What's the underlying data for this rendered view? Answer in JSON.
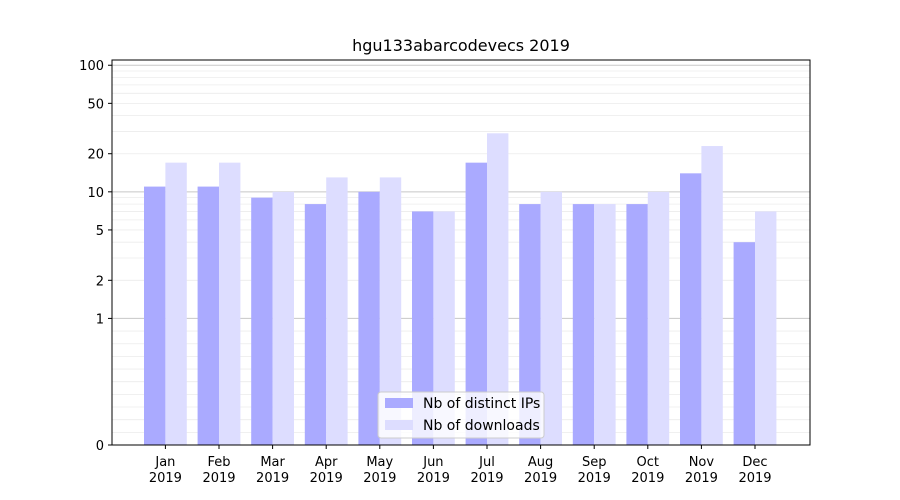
{
  "chart_data": {
    "type": "bar",
    "title": "hgu133abarcodevecs 2019",
    "xlabel": "",
    "ylabel": "",
    "yscale": "symlog",
    "ylim": [
      0,
      110
    ],
    "yticks": [
      0,
      1,
      2,
      5,
      10,
      20,
      50,
      100
    ],
    "grid": true,
    "legend_position": "bottom-center",
    "categories": [
      [
        "Jan",
        "2019"
      ],
      [
        "Feb",
        "2019"
      ],
      [
        "Mar",
        "2019"
      ],
      [
        "Apr",
        "2019"
      ],
      [
        "May",
        "2019"
      ],
      [
        "Jun",
        "2019"
      ],
      [
        "Jul",
        "2019"
      ],
      [
        "Aug",
        "2019"
      ],
      [
        "Sep",
        "2019"
      ],
      [
        "Oct",
        "2019"
      ],
      [
        "Nov",
        "2019"
      ],
      [
        "Dec",
        "2019"
      ]
    ],
    "series": [
      {
        "name": "Nb of distinct IPs",
        "color": "#aaaaff",
        "values": [
          11,
          11,
          9,
          8,
          10,
          7,
          17,
          8,
          8,
          8,
          14,
          4
        ]
      },
      {
        "name": "Nb of downloads",
        "color": "#ddddff",
        "values": [
          17,
          17,
          10,
          13,
          13,
          7,
          29,
          10,
          8,
          10,
          23,
          7
        ]
      }
    ]
  }
}
